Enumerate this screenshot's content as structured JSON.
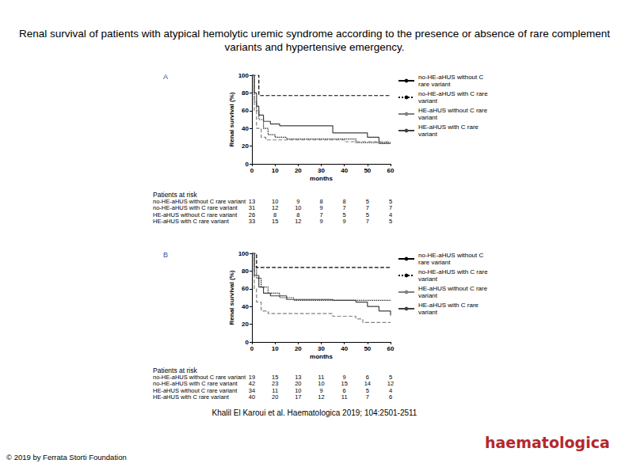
{
  "title": "Renal survival of patients with atypical hemolytic uremic syndrome according to the presence or absence of rare complement variants and hypertensive emergency.",
  "citation": "Khalil El Karoui et al. Haematologica 2019; 104:2501-2511",
  "copyright": "© 2019 by Ferrata Storti Foundation",
  "logo": "haematologica",
  "chart_data": [
    {
      "type": "line",
      "panel": "A",
      "x_label": "months",
      "y_label": "Renal survival (%)",
      "xlim": [
        0,
        60
      ],
      "xticks": [
        0,
        10,
        20,
        30,
        40,
        50,
        60
      ],
      "ylim": [
        0,
        100
      ],
      "yticks": [
        0,
        20,
        40,
        60,
        80,
        100
      ],
      "grid": false,
      "series": [
        {
          "name": "no-HE-aHUS without C rare variant",
          "color": "#000000",
          "line_style": "dashed",
          "x": [
            0,
            3,
            60
          ],
          "values": [
            100,
            77,
            77
          ]
        },
        {
          "name": "no-HE-aHUS with C rare variant",
          "color": "#000000",
          "line_style": "dotted",
          "x": [
            0,
            1,
            2,
            3,
            5,
            7,
            10,
            15,
            40,
            45,
            60
          ],
          "values": [
            100,
            70,
            60,
            50,
            40,
            33,
            30,
            28,
            28,
            24,
            24
          ]
        },
        {
          "name": "HE-aHUS without C rare variant",
          "color": "#808080",
          "line_style": "dashed",
          "x": [
            0,
            1,
            2,
            4,
            6,
            40,
            60
          ],
          "values": [
            100,
            60,
            40,
            30,
            27,
            25,
            25
          ]
        },
        {
          "name": "HE-aHUS with C rare variant",
          "color": "#404040",
          "line_style": "solid",
          "x": [
            0,
            1,
            2,
            3,
            5,
            8,
            12,
            20,
            35,
            45,
            50,
            55,
            60
          ],
          "values": [
            100,
            80,
            65,
            55,
            48,
            45,
            43,
            43,
            35,
            35,
            30,
            23,
            23
          ]
        }
      ],
      "at_risk": {
        "title": "Patients at risk",
        "x": [
          0,
          10,
          20,
          30,
          40,
          50,
          60
        ],
        "rows": [
          {
            "label": "no-HE-aHUS without C rare variant",
            "values": [
              13,
              10,
              9,
              8,
              8,
              5,
              5
            ]
          },
          {
            "label": "no-HE-aHUS with C rare variant",
            "values": [
              31,
              12,
              10,
              9,
              7,
              7,
              7
            ]
          },
          {
            "label": "HE-aHUS without C rare variant",
            "values": [
              26,
              8,
              8,
              7,
              5,
              5,
              4
            ]
          },
          {
            "label": "HE-aHUS with C rare variant",
            "values": [
              33,
              15,
              12,
              9,
              9,
              7,
              5
            ]
          }
        ]
      }
    },
    {
      "type": "line",
      "panel": "B",
      "x_label": "months",
      "y_label": "Renal survival (%)",
      "xlim": [
        0,
        60
      ],
      "xticks": [
        0,
        10,
        20,
        30,
        40,
        50,
        60
      ],
      "ylim": [
        0,
        100
      ],
      "yticks": [
        0,
        20,
        40,
        60,
        80,
        100
      ],
      "grid": false,
      "series": [
        {
          "name": "no-HE-aHUS without C rare variant",
          "color": "#000000",
          "line_style": "dashed",
          "x": [
            0,
            2,
            60
          ],
          "values": [
            100,
            84,
            84
          ]
        },
        {
          "name": "no-HE-aHUS with C rare variant",
          "color": "#000000",
          "line_style": "dotted",
          "x": [
            0,
            1,
            2,
            4,
            7,
            12,
            18,
            40,
            60
          ],
          "values": [
            100,
            85,
            72,
            62,
            55,
            50,
            47,
            47,
            47
          ]
        },
        {
          "name": "HE-aHUS without C rare variant",
          "color": "#808080",
          "line_style": "dashed",
          "x": [
            0,
            1,
            2,
            4,
            7,
            30,
            35,
            45,
            48,
            60
          ],
          "values": [
            100,
            60,
            45,
            35,
            32,
            32,
            29,
            26,
            22,
            22
          ]
        },
        {
          "name": "HE-aHUS with C rare variant",
          "color": "#404040",
          "line_style": "solid",
          "x": [
            0,
            1,
            3,
            5,
            8,
            15,
            35,
            45,
            50,
            55,
            60
          ],
          "values": [
            100,
            75,
            62,
            55,
            52,
            48,
            47,
            45,
            40,
            35,
            30
          ]
        }
      ],
      "at_risk": {
        "title": "Patients at risk",
        "x": [
          0,
          10,
          20,
          30,
          40,
          50,
          60
        ],
        "rows": [
          {
            "label": "no-HE-aHUS without C rare variant",
            "values": [
              19,
              15,
              13,
              11,
              9,
              6,
              5
            ]
          },
          {
            "label": "no-HE-aHUS with C rare variant",
            "values": [
              42,
              23,
              20,
              10,
              15,
              14,
              12
            ]
          },
          {
            "label": "HE-aHUS without C rare variant",
            "values": [
              34,
              11,
              10,
              9,
              6,
              5,
              4
            ]
          },
          {
            "label": "HE-aHUS with C rare variant",
            "values": [
              40,
              20,
              17,
              12,
              11,
              7,
              6
            ]
          }
        ]
      }
    }
  ]
}
